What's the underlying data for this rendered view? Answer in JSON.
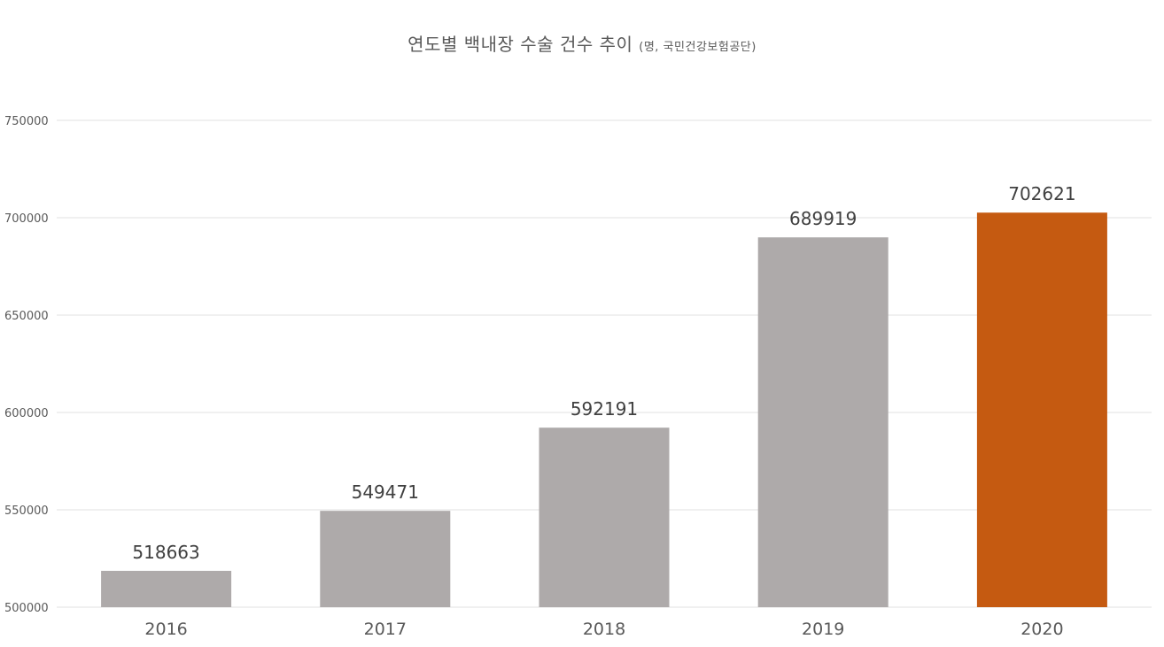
{
  "chart_data": {
    "type": "bar",
    "title": "연도별 백내장 수술 건수 추이",
    "subtitle": "(명, 국민건강보험공단)",
    "categories": [
      "2016",
      "2017",
      "2018",
      "2019",
      "2020"
    ],
    "values": [
      518663,
      549471,
      592191,
      689919,
      702621
    ],
    "data_labels": [
      "518663",
      "549471",
      "592191",
      "689919",
      "702621"
    ],
    "ylim": [
      500000,
      750000
    ],
    "yticks": [
      500000,
      550000,
      600000,
      650000,
      700000,
      750000
    ],
    "ytick_labels": [
      "500000",
      "550000",
      "600000",
      "650000",
      "700000",
      "750000"
    ],
    "xlabel": "",
    "ylabel": "",
    "grid": true,
    "legend": "none",
    "colors": {
      "default_bar": "#aeaaaa",
      "highlight_bar": "#c55a11",
      "gridline": "#e0e0e0",
      "text": "#595959"
    },
    "highlight_index": 4
  }
}
